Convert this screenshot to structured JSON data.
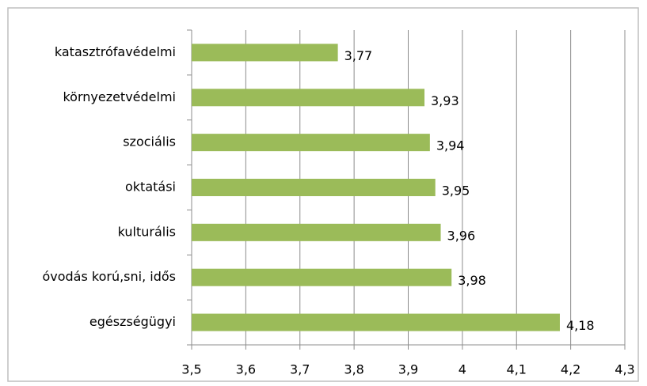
{
  "chart_data": {
    "type": "hbar",
    "categories": [
      "katasztrófavédelmi",
      "környezetvédelmi",
      "szociális",
      "oktatási",
      "kulturális",
      "óvodás korú,sni, idős",
      "egészségügyi"
    ],
    "values": [
      3.77,
      3.93,
      3.94,
      3.95,
      3.96,
      3.98,
      4.18
    ],
    "value_labels": [
      "3,77",
      "3,93",
      "3,94",
      "3,95",
      "3,96",
      "3,98",
      "4,18"
    ],
    "color": "#9bbb59",
    "xlim": [
      3.5,
      4.3
    ],
    "xticks": [
      {
        "value": 3.5,
        "label": "3,5"
      },
      {
        "value": 3.6,
        "label": "3,6"
      },
      {
        "value": 3.7,
        "label": "3,7"
      },
      {
        "value": 3.8,
        "label": "3,8"
      },
      {
        "value": 3.9,
        "label": "3,9"
      },
      4,
      {
        "value": 4.1,
        "label": "4,1"
      },
      {
        "value": 4.2,
        "label": "4,2"
      },
      {
        "value": 4.3,
        "label": "4,3"
      }
    ],
    "grid": true
  }
}
